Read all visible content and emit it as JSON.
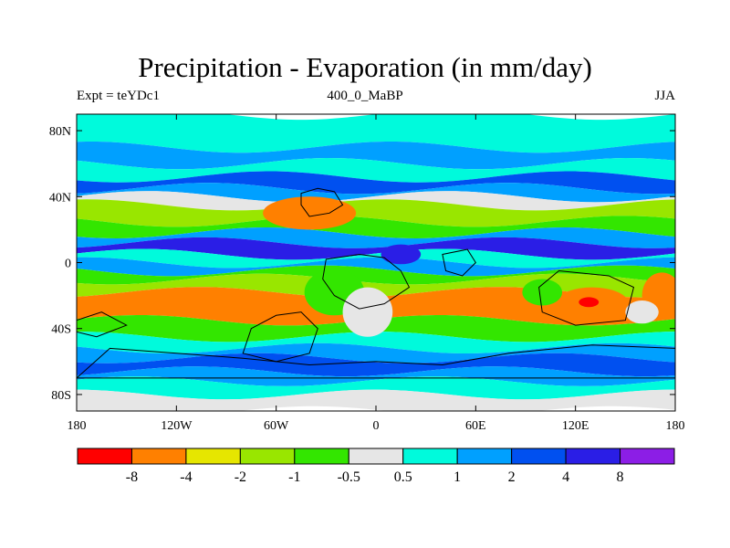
{
  "title": "Precipitation - Evaporation (in mm/day)",
  "subtitle_left": "Expt = teYDc1",
  "subtitle_center": "400_0_MaBP",
  "subtitle_right": "JJA",
  "axes": {
    "lat_ticks": [
      {
        "value": 80,
        "label": "80N"
      },
      {
        "value": 40,
        "label": "40N"
      },
      {
        "value": 0,
        "label": "0"
      },
      {
        "value": -40,
        "label": "40S"
      },
      {
        "value": -80,
        "label": "80S"
      }
    ],
    "lon_ticks": [
      {
        "value": -180,
        "label": "180"
      },
      {
        "value": -120,
        "label": "120W"
      },
      {
        "value": -60,
        "label": "60W"
      },
      {
        "value": 0,
        "label": "0"
      },
      {
        "value": 60,
        "label": "60E"
      },
      {
        "value": 120,
        "label": "120E"
      },
      {
        "value": 180,
        "label": "180"
      }
    ],
    "lon_range": [
      -180,
      180
    ],
    "lat_range": [
      -90,
      90
    ]
  },
  "colorbar": {
    "colors": [
      "#ff0000",
      "#ff8000",
      "#e6e600",
      "#99e600",
      "#33e600",
      "#e6e6e6",
      "#00fadc",
      "#00a0ff",
      "#0050f0",
      "#2a1ee6",
      "#8c1ee6"
    ],
    "labels": [
      "-8",
      "-4",
      "-2",
      "-1",
      "-0.5",
      "0.5",
      "1",
      "2",
      "4",
      "8"
    ]
  },
  "chart_data": {
    "type": "heatmap",
    "title": "Precipitation - Evaporation (in mm/day)",
    "subtitle": "400_0_MaBP",
    "season": "JJA",
    "experiment": "teYDc1",
    "x_range": [
      -180,
      180
    ],
    "y_range": [
      -90,
      90
    ],
    "contour_levels": [
      -8,
      -4,
      -2,
      -1,
      -0.5,
      0.5,
      1,
      2,
      4,
      8
    ],
    "zonal_bands": [
      {
        "lat": [
          70,
          90
        ],
        "value": 0.7
      },
      {
        "lat": [
          60,
          70
        ],
        "value": 1.5
      },
      {
        "lat": [
          52,
          60
        ],
        "value": 0.7
      },
      {
        "lat": [
          45,
          52
        ],
        "value": 2.5
      },
      {
        "lat": [
          40,
          45
        ],
        "value": 1.5
      },
      {
        "lat": [
          35,
          40
        ],
        "value": 0
      },
      {
        "lat": [
          25,
          35
        ],
        "value": -1.5
      },
      {
        "lat": [
          18,
          25
        ],
        "value": -0.8
      },
      {
        "lat": [
          12,
          18
        ],
        "value": 1.5
      },
      {
        "lat": [
          5,
          12
        ],
        "value": 6
      },
      {
        "lat": [
          0,
          5
        ],
        "value": 0.7
      },
      {
        "lat": [
          -5,
          0
        ],
        "value": 1.5
      },
      {
        "lat": [
          -10,
          -5
        ],
        "value": -0.7
      },
      {
        "lat": [
          -18,
          -10
        ],
        "value": -1.5
      },
      {
        "lat": [
          -35,
          -18
        ],
        "value": -5
      },
      {
        "lat": [
          -45,
          -35
        ],
        "value": -0.7
      },
      {
        "lat": [
          -52,
          -45
        ],
        "value": 0.7
      },
      {
        "lat": [
          -58,
          -52
        ],
        "value": 1.5
      },
      {
        "lat": [
          -66,
          -58
        ],
        "value": 2.5
      },
      {
        "lat": [
          -72,
          -66
        ],
        "value": 1.5
      },
      {
        "lat": [
          -80,
          -72
        ],
        "value": 0.7
      },
      {
        "lat": [
          -90,
          -80
        ],
        "value": 0
      }
    ],
    "features": [
      {
        "type": "ellipse",
        "lon": -40,
        "lat": 30,
        "rlon": 28,
        "rlat": 10,
        "value": -5
      },
      {
        "type": "ellipse",
        "lon": 15,
        "lat": 5,
        "rlon": 12,
        "rlat": 6,
        "value": 6
      },
      {
        "type": "ellipse",
        "lon": -25,
        "lat": -18,
        "rlon": 18,
        "rlat": 14,
        "value": -0.8
      },
      {
        "type": "ellipse",
        "lon": -5,
        "lat": -30,
        "rlon": 15,
        "rlat": 15,
        "value": 0
      },
      {
        "type": "ellipse",
        "lon": 130,
        "lat": -25,
        "rlon": 22,
        "rlat": 10,
        "value": -5
      },
      {
        "type": "ellipse",
        "lon": 128,
        "lat": -24,
        "rlon": 6,
        "rlat": 3,
        "value": -9
      },
      {
        "type": "ellipse",
        "lon": 172,
        "lat": -20,
        "rlon": 12,
        "rlat": 14,
        "value": -5
      },
      {
        "type": "ellipse",
        "lon": 160,
        "lat": -30,
        "rlon": 10,
        "rlat": 7,
        "value": 0
      },
      {
        "type": "ellipse",
        "lon": 100,
        "lat": -18,
        "rlon": 12,
        "rlat": 8,
        "value": -0.8
      }
    ]
  }
}
